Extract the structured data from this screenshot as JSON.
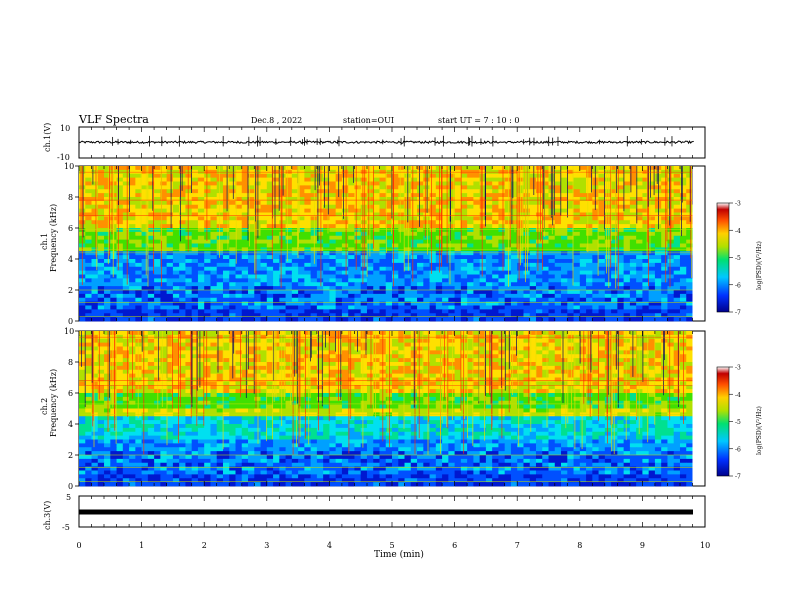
{
  "header": {
    "title": "VLF Spectra",
    "date": "Dec.8 , 2022",
    "station": "station=OUI",
    "start": "start UT = 7 : 10 : 0"
  },
  "panels": {
    "ch1_wave": {
      "ylabel": "ch.1(V)",
      "yticks": [
        "10",
        "-10"
      ]
    },
    "ch1_spec": {
      "ylabel_top": "ch.1",
      "ylabel_bottom": "Frequency (kHz)",
      "yticks": [
        "10",
        "8",
        "6",
        "4",
        "2",
        "0"
      ]
    },
    "ch2_spec": {
      "ylabel_top": "ch.2",
      "ylabel_bottom": "Frequency (kHz)",
      "yticks": [
        "10",
        "8",
        "6",
        "4",
        "2",
        "0"
      ]
    },
    "ch3_wave": {
      "ylabel": "ch.3(V)",
      "yticks": [
        "5",
        "-5"
      ]
    }
  },
  "colorbar": {
    "label": "log(PSD)(V²/Hz)",
    "ticks": [
      "-3",
      "-4",
      "-5",
      "-6",
      "-7"
    ],
    "colors": [
      "#00008b",
      "#0030ff",
      "#00c8ff",
      "#00e070",
      "#b0e000",
      "#ffd000",
      "#ff5000",
      "#c00000",
      "#ffffff"
    ]
  },
  "xaxis": {
    "label": "Time (min)",
    "ticks": [
      "0",
      "1",
      "2",
      "3",
      "4",
      "5",
      "6",
      "7",
      "8",
      "9",
      "10"
    ]
  },
  "chart_data": [
    {
      "type": "line",
      "title": "",
      "ylabel": "ch.1(V)",
      "ylim": [
        -10,
        10
      ],
      "xlim": [
        0,
        10
      ],
      "x_unit": "min",
      "description_values": {
        "baseline": 0.0,
        "typical_range": [
          -1,
          1
        ]
      }
    },
    {
      "type": "heatmap",
      "ylabel": "ch.1 Frequency (kHz)",
      "ylim": [
        0,
        10
      ],
      "xlim": [
        0,
        10
      ],
      "data_end_min": 9.8,
      "color_scale": "log(PSD)(V²/Hz)",
      "clim": [
        -7,
        -3
      ]
    },
    {
      "type": "heatmap",
      "ylabel": "ch.2 Frequency (kHz)",
      "ylim": [
        0,
        10
      ],
      "xlim": [
        0,
        10
      ],
      "data_end_min": 9.8,
      "color_scale": "log(PSD)(V²/Hz)",
      "clim": [
        -7,
        -3
      ]
    },
    {
      "type": "line",
      "ylabel": "ch.3(V)",
      "ylim": [
        -5,
        5
      ],
      "xlim": [
        0,
        10
      ],
      "x_unit": "min",
      "description_values": {
        "baseline": 0.0
      }
    }
  ]
}
